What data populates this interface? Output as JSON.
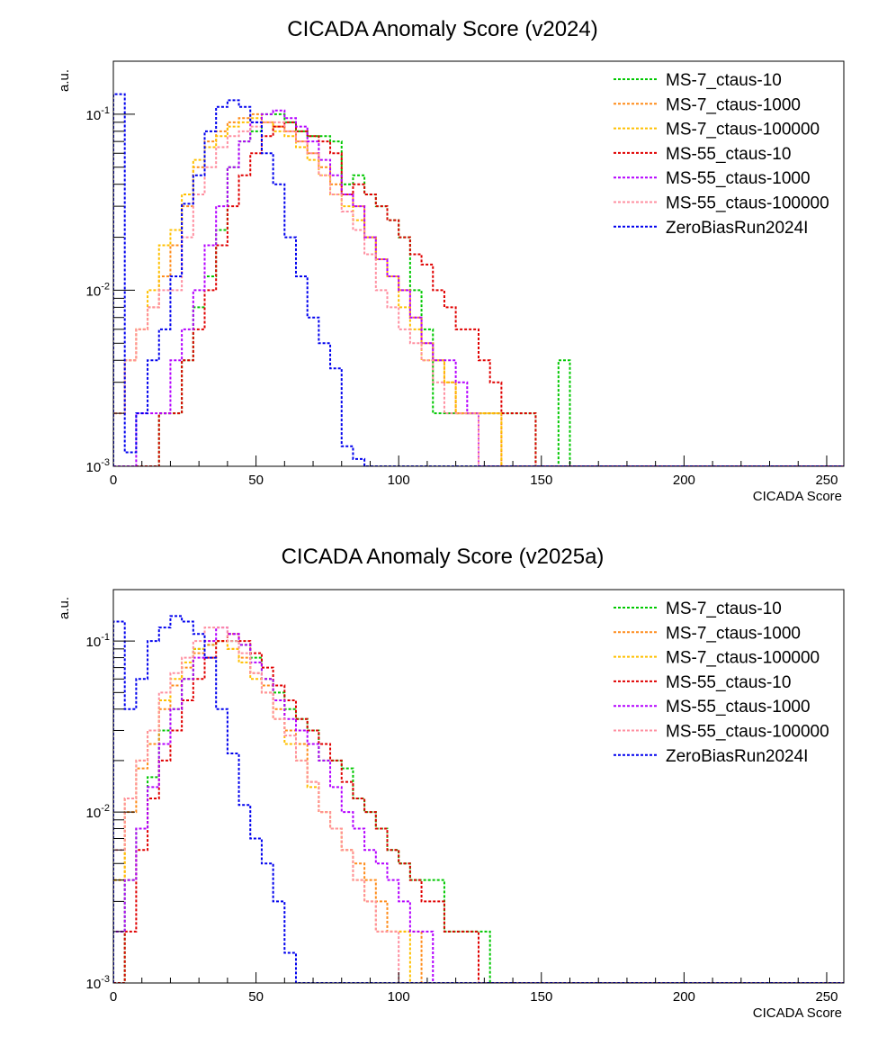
{
  "colors": {
    "MS-7_ctaus-10": "#00c800",
    "MS-7_ctaus-1000": "#ff8c1a",
    "MS-7_ctaus-100000": "#ffc000",
    "MS-55_ctaus-10": "#e00000",
    "MS-55_ctaus-1000": "#b400ff",
    "MS-55_ctaus-100000": "#ff8fa0",
    "ZeroBiasRun2024I": "#0000ee"
  },
  "chart_data": [
    {
      "type": "line",
      "style": "step-histogram",
      "title": "CICADA Anomaly Score (v2024)",
      "xlabel": "CICADA Score",
      "ylabel": "a.u.",
      "xlim": [
        0,
        256
      ],
      "ylim": [
        0.001,
        0.2
      ],
      "log_y": true,
      "grid": false,
      "legend_position": "top-right",
      "x_ticks": [
        "0",
        "50",
        "100",
        "150",
        "200",
        "250"
      ],
      "y_ticks": [
        "10^-3",
        "10^-2",
        "10^-1"
      ],
      "bin_width": 4,
      "x": [
        2,
        6,
        10,
        14,
        18,
        22,
        26,
        30,
        34,
        38,
        42,
        46,
        50,
        54,
        58,
        62,
        66,
        70,
        74,
        78,
        82,
        86,
        90,
        94,
        98,
        102,
        106,
        110,
        114,
        118,
        122,
        126,
        130,
        134,
        138,
        142,
        146,
        150,
        154,
        158
      ],
      "series": [
        {
          "name": "MS-7_ctaus-10",
          "values": [
            0,
            0,
            0,
            0,
            0.002,
            0.002,
            0.004,
            0.008,
            0.012,
            0.022,
            0.05,
            0.07,
            0.08,
            0.1,
            0.1,
            0.09,
            0.08,
            0.075,
            0.075,
            0.07,
            0.04,
            0.045,
            0.035,
            0.03,
            0.025,
            0.02,
            0.01,
            0.006,
            0.002,
            0.002,
            0.002,
            0.002,
            0.002,
            0.002,
            0.002,
            0.002,
            0.002,
            0,
            0,
            0.004
          ]
        },
        {
          "name": "MS-7_ctaus-1000",
          "values": [
            0.002,
            0.004,
            0.006,
            0.008,
            0.012,
            0.018,
            0.03,
            0.05,
            0.07,
            0.08,
            0.09,
            0.095,
            0.1,
            0.09,
            0.085,
            0.08,
            0.07,
            0.06,
            0.05,
            0.04,
            0.035,
            0.03,
            0.02,
            0.015,
            0.012,
            0.01,
            0.007,
            0.005,
            0.004,
            0.003,
            0.002,
            0.002,
            0.002,
            0.002,
            0,
            0,
            0,
            0,
            0,
            0
          ]
        },
        {
          "name": "MS-7_ctaus-100000",
          "values": [
            0.002,
            0.004,
            0.006,
            0.01,
            0.018,
            0.022,
            0.035,
            0.055,
            0.065,
            0.075,
            0.085,
            0.09,
            0.095,
            0.09,
            0.08,
            0.075,
            0.065,
            0.055,
            0.045,
            0.035,
            0.03,
            0.025,
            0.02,
            0.015,
            0.012,
            0.008,
            0.006,
            0.004,
            0.004,
            0.003,
            0.002,
            0.002,
            0.002,
            0.002,
            0,
            0,
            0,
            0,
            0,
            0
          ]
        },
        {
          "name": "MS-55_ctaus-10",
          "values": [
            0,
            0,
            0,
            0,
            0.002,
            0.002,
            0.004,
            0.006,
            0.01,
            0.018,
            0.03,
            0.045,
            0.06,
            0.075,
            0.085,
            0.09,
            0.08,
            0.075,
            0.07,
            0.06,
            0.035,
            0.04,
            0.035,
            0.03,
            0.025,
            0.02,
            0.016,
            0.014,
            0.01,
            0.008,
            0.006,
            0.006,
            0.004,
            0.003,
            0.002,
            0.002,
            0.002,
            0,
            0,
            0
          ]
        },
        {
          "name": "MS-55_ctaus-1000",
          "values": [
            0,
            0,
            0.002,
            0.002,
            0.002,
            0.004,
            0.006,
            0.01,
            0.018,
            0.03,
            0.05,
            0.07,
            0.09,
            0.1,
            0.105,
            0.095,
            0.085,
            0.07,
            0.055,
            0.045,
            0.035,
            0.03,
            0.02,
            0.015,
            0.012,
            0.01,
            0.007,
            0.005,
            0.004,
            0.004,
            0.003,
            0.002,
            0,
            0,
            0,
            0,
            0,
            0,
            0,
            0
          ]
        },
        {
          "name": "MS-55_ctaus-100000",
          "values": [
            0.002,
            0.004,
            0.006,
            0.008,
            0.01,
            0.01,
            0.02,
            0.035,
            0.05,
            0.065,
            0.075,
            0.08,
            0.085,
            0.09,
            0.09,
            0.08,
            0.07,
            0.06,
            0.045,
            0.035,
            0.028,
            0.022,
            0.016,
            0.01,
            0.008,
            0.006,
            0.005,
            0.004,
            0.003,
            0.002,
            0.002,
            0.002,
            0,
            0,
            0,
            0,
            0,
            0,
            0,
            0
          ]
        },
        {
          "name": "ZeroBiasRun2024I",
          "values": [
            0.13,
            0.0012,
            0.002,
            0.004,
            0.006,
            0.012,
            0.031,
            0.045,
            0.08,
            0.11,
            0.12,
            0.11,
            0.09,
            0.06,
            0.04,
            0.02,
            0.012,
            0.007,
            0.005,
            0.0036,
            0.0013,
            0.0011,
            0,
            0,
            0,
            0,
            0,
            0,
            0,
            0,
            0,
            0,
            0,
            0,
            0,
            0,
            0,
            0,
            0,
            0
          ]
        }
      ]
    },
    {
      "type": "line",
      "style": "step-histogram",
      "title": "CICADA Anomaly Score (v2025a)",
      "xlabel": "CICADA Score",
      "ylabel": "a.u.",
      "xlim": [
        0,
        256
      ],
      "ylim": [
        0.001,
        0.2
      ],
      "log_y": true,
      "grid": false,
      "legend_position": "top-right",
      "x_ticks": [
        "0",
        "50",
        "100",
        "150",
        "200",
        "250"
      ],
      "y_ticks": [
        "10^-3",
        "10^-2",
        "10^-1"
      ],
      "bin_width": 4,
      "x": [
        2,
        6,
        10,
        14,
        18,
        22,
        26,
        30,
        34,
        38,
        42,
        46,
        50,
        54,
        58,
        62,
        66,
        70,
        74,
        78,
        82,
        86,
        90,
        94,
        98,
        102,
        106,
        110,
        114,
        118,
        122,
        126,
        130,
        134,
        138,
        142,
        146,
        150,
        154,
        158
      ],
      "series": [
        {
          "name": "MS-7_ctaus-10",
          "values": [
            0,
            0.004,
            0.008,
            0.016,
            0.03,
            0.04,
            0.06,
            0.09,
            0.095,
            0.1,
            0.1,
            0.095,
            0.08,
            0.06,
            0.05,
            0.04,
            0.035,
            0.03,
            0.02,
            0.02,
            0.018,
            0.012,
            0.01,
            0.008,
            0.006,
            0.005,
            0.004,
            0.004,
            0.004,
            0.002,
            0.002,
            0.002,
            0.002,
            0,
            0,
            0,
            0,
            0,
            0,
            0
          ]
        },
        {
          "name": "MS-7_ctaus-1000",
          "values": [
            0.004,
            0.01,
            0.018,
            0.025,
            0.04,
            0.055,
            0.07,
            0.085,
            0.095,
            0.1,
            0.09,
            0.08,
            0.065,
            0.055,
            0.04,
            0.03,
            0.025,
            0.015,
            0.01,
            0.008,
            0.006,
            0.005,
            0.004,
            0.003,
            0.002,
            0.002,
            0.002,
            0,
            0,
            0,
            0,
            0,
            0,
            0,
            0,
            0,
            0,
            0,
            0,
            0
          ]
        },
        {
          "name": "MS-7_ctaus-100000",
          "values": [
            0.004,
            0.012,
            0.02,
            0.03,
            0.045,
            0.06,
            0.075,
            0.09,
            0.1,
            0.1,
            0.09,
            0.075,
            0.06,
            0.05,
            0.035,
            0.025,
            0.02,
            0.014,
            0.01,
            0.008,
            0.006,
            0.004,
            0.003,
            0.002,
            0.002,
            0.002,
            0,
            0,
            0,
            0,
            0,
            0,
            0,
            0,
            0,
            0,
            0,
            0,
            0,
            0
          ]
        },
        {
          "name": "MS-55_ctaus-10",
          "values": [
            0,
            0.002,
            0.006,
            0.012,
            0.02,
            0.03,
            0.045,
            0.06,
            0.08,
            0.1,
            0.11,
            0.1,
            0.085,
            0.07,
            0.055,
            0.045,
            0.035,
            0.03,
            0.025,
            0.02,
            0.015,
            0.012,
            0.01,
            0.008,
            0.006,
            0.005,
            0.004,
            0.003,
            0.003,
            0.002,
            0.002,
            0.002,
            0,
            0,
            0,
            0,
            0,
            0,
            0,
            0
          ]
        },
        {
          "name": "MS-55_ctaus-1000",
          "values": [
            0.002,
            0.004,
            0.008,
            0.014,
            0.025,
            0.04,
            0.06,
            0.08,
            0.1,
            0.12,
            0.11,
            0.095,
            0.075,
            0.06,
            0.045,
            0.035,
            0.03,
            0.025,
            0.02,
            0.014,
            0.01,
            0.008,
            0.006,
            0.005,
            0.004,
            0.003,
            0.002,
            0.002,
            0,
            0,
            0,
            0,
            0,
            0,
            0,
            0,
            0,
            0,
            0,
            0
          ]
        },
        {
          "name": "MS-55_ctaus-100000",
          "values": [
            0.006,
            0.012,
            0.02,
            0.03,
            0.05,
            0.065,
            0.08,
            0.1,
            0.12,
            0.12,
            0.1,
            0.085,
            0.065,
            0.05,
            0.035,
            0.028,
            0.02,
            0.015,
            0.01,
            0.008,
            0.006,
            0.004,
            0.003,
            0.002,
            0.002,
            0,
            0,
            0,
            0,
            0,
            0,
            0,
            0,
            0,
            0,
            0,
            0,
            0,
            0,
            0
          ]
        },
        {
          "name": "ZeroBiasRun2024I",
          "values": [
            0.13,
            0.04,
            0.06,
            0.1,
            0.12,
            0.14,
            0.13,
            0.11,
            0.08,
            0.04,
            0.022,
            0.011,
            0.007,
            0.005,
            0.003,
            0.0015,
            0.001,
            0,
            0,
            0,
            0,
            0,
            0,
            0,
            0,
            0,
            0,
            0,
            0,
            0,
            0,
            0,
            0,
            0,
            0,
            0,
            0,
            0,
            0,
            0
          ]
        }
      ]
    }
  ]
}
